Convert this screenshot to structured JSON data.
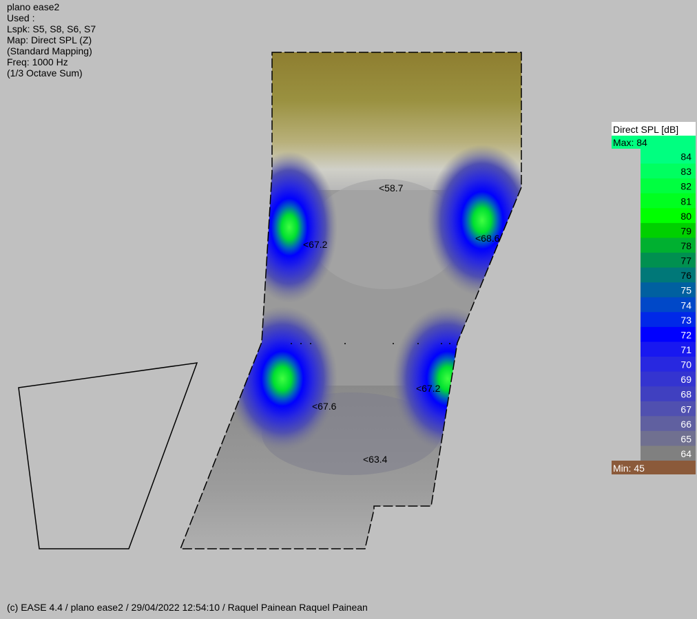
{
  "info": {
    "lines": [
      "plano ease2",
      "Used :",
      "Lspk: S5, S8, S6, S7",
      "Map: Direct SPL (Z)",
      "(Standard Mapping)",
      "Freq: 1000 Hz",
      "(1/3 Octave Sum)"
    ]
  },
  "footer": "(c) EASE 4.4  / plano ease2  / 29/04/2022 12:54:10 / Raquel Painean Raquel Painean",
  "chart_data": {
    "type": "heatmap",
    "title": "plano ease2",
    "map": "Direct SPL (Z)",
    "frequency": "1000 Hz",
    "unit": "dB",
    "loudspeakers": [
      "S5",
      "S8",
      "S6",
      "S7"
    ],
    "annotations": [
      "<58.7",
      "<67.2",
      "<68.6",
      "<67.6",
      "<67.2",
      "<63.4"
    ],
    "legend": {
      "title": "Direct SPL [dB]",
      "max_label": "Max:  84",
      "min_label": "Min:  45",
      "max": 84,
      "min": 45,
      "levels": [
        {
          "value": "84",
          "color": "#00ff80"
        },
        {
          "value": "83",
          "color": "#00ff60"
        },
        {
          "value": "82",
          "color": "#00ff40"
        },
        {
          "value": "81",
          "color": "#00ff20"
        },
        {
          "value": "80",
          "color": "#00ff00"
        },
        {
          "value": "79",
          "color": "#00d000"
        },
        {
          "value": "78",
          "color": "#00b030"
        },
        {
          "value": "77",
          "color": "#009050"
        },
        {
          "value": "76",
          "color": "#007878"
        },
        {
          "value": "75",
          "color": "#0060a0"
        },
        {
          "value": "74",
          "color": "#0048c8"
        },
        {
          "value": "73",
          "color": "#0028e8"
        },
        {
          "value": "72",
          "color": "#0000ff"
        },
        {
          "value": "71",
          "color": "#1818f0"
        },
        {
          "value": "70",
          "color": "#2828e0"
        },
        {
          "value": "69",
          "color": "#3434d0"
        },
        {
          "value": "68",
          "color": "#4040c0"
        },
        {
          "value": "67",
          "color": "#5050b0"
        },
        {
          "value": "66",
          "color": "#6060a0"
        },
        {
          "value": "65",
          "color": "#707090"
        },
        {
          "value": "64",
          "color": "#808080"
        }
      ],
      "min_color": "#8b5a3a",
      "max_color": "#00ff80"
    }
  }
}
